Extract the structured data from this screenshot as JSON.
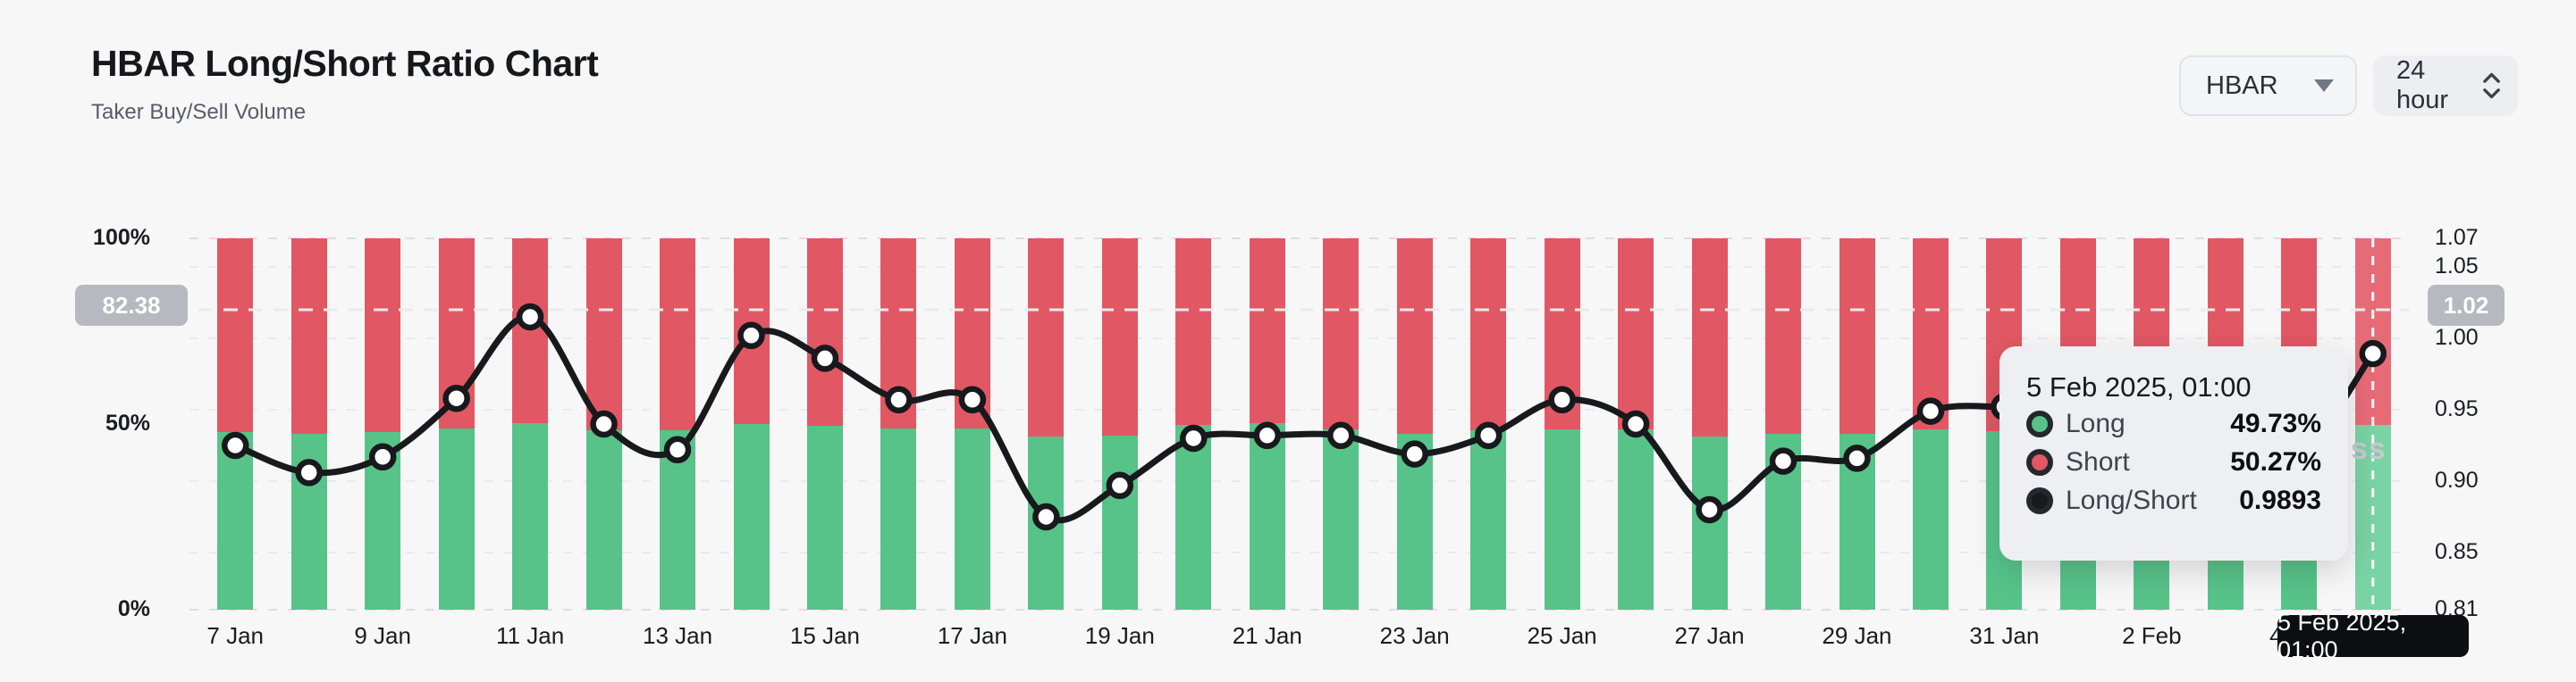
{
  "header": {
    "title": "HBAR Long/Short Ratio Chart",
    "subtitle": "Taker Buy/Sell Volume"
  },
  "controls": {
    "symbol_select": {
      "value": "HBAR"
    },
    "interval_select": {
      "value": "24 hour"
    }
  },
  "axes": {
    "left": {
      "ticks": [
        {
          "label": "100%",
          "value": 100
        },
        {
          "label": "50%",
          "value": 50
        },
        {
          "label": "0%",
          "value": 0
        }
      ],
      "badge": "82.38"
    },
    "right": {
      "ticks": [
        {
          "label": "1.07",
          "value": 1.07
        },
        {
          "label": "1.05",
          "value": 1.05
        },
        {
          "label": "1.00",
          "value": 1.0
        },
        {
          "label": "0.95",
          "value": 0.95
        },
        {
          "label": "0.90",
          "value": 0.9
        },
        {
          "label": "0.85",
          "value": 0.85
        },
        {
          "label": "0.81",
          "value": 0.81
        }
      ],
      "badge": "1.02",
      "range": [
        0.81,
        1.07
      ]
    }
  },
  "reference_line": {
    "right_value": 1.02,
    "left_value": 82.38
  },
  "chart_data": {
    "type": "bar",
    "subtype": "stacked-percent-bars-with-ratio-line",
    "title": "HBAR Long/Short Ratio Chart",
    "categories": [
      "7 Jan",
      "8 Jan",
      "9 Jan",
      "10 Jan",
      "11 Jan",
      "12 Jan",
      "13 Jan",
      "14 Jan",
      "15 Jan",
      "16 Jan",
      "17 Jan",
      "18 Jan",
      "19 Jan",
      "20 Jan",
      "21 Jan",
      "22 Jan",
      "23 Jan",
      "24 Jan",
      "25 Jan",
      "26 Jan",
      "27 Jan",
      "28 Jan",
      "29 Jan",
      "30 Jan",
      "31 Jan",
      "1 Feb",
      "2 Feb",
      "3 Feb",
      "4 Feb",
      "5 Feb"
    ],
    "x_tick_every": 2,
    "series": [
      {
        "name": "Long",
        "type": "bar",
        "color": "#57c389",
        "values": [
          47.9,
          47.4,
          47.8,
          48.8,
          50.2,
          48.3,
          48.3,
          50.0,
          49.4,
          48.7,
          48.9,
          46.6,
          46.8,
          49.8,
          50.2,
          48.5,
          47.4,
          48.2,
          48.6,
          48.6,
          46.6,
          47.4,
          47.4,
          48.6,
          48.0,
          48.5,
          47.5,
          48.8,
          48.0,
          49.73
        ]
      },
      {
        "name": "Short",
        "type": "bar",
        "color": "#e25764",
        "values": [
          52.1,
          52.6,
          52.2,
          51.2,
          49.8,
          51.7,
          51.7,
          50.0,
          50.6,
          51.3,
          51.1,
          53.4,
          53.2,
          50.2,
          49.8,
          51.5,
          52.6,
          51.8,
          51.4,
          51.4,
          53.4,
          52.6,
          52.6,
          51.4,
          52.0,
          51.5,
          52.5,
          51.2,
          52.0,
          50.27
        ]
      },
      {
        "name": "Long/Short",
        "type": "line",
        "color": "#17191c",
        "axis": "right",
        "values": [
          0.925,
          0.906,
          0.917,
          0.958,
          1.015,
          0.94,
          0.922,
          1.002,
          0.986,
          0.957,
          0.957,
          0.875,
          0.897,
          0.93,
          0.932,
          0.932,
          0.919,
          0.932,
          0.957,
          0.94,
          0.88,
          0.914,
          0.916,
          0.949,
          0.952,
          0.95,
          0.947,
          0.938,
          0.92,
          0.9893
        ]
      }
    ],
    "left_axis_range": [
      0,
      100
    ],
    "right_axis_range": [
      0.81,
      1.07
    ],
    "grid": "horizontal-dashed",
    "hovered_index": 29,
    "legend_position": "tooltip-only"
  },
  "tooltip": {
    "title": "5 Feb 2025, 01:00",
    "rows": [
      {
        "label": "Long",
        "value": "49.73%",
        "color": "#57c389"
      },
      {
        "label": "Short",
        "value": "50.27%",
        "color": "#e25764"
      },
      {
        "label": "Long/Short",
        "value": "0.9893",
        "color": "#17191c"
      }
    ]
  },
  "crosshair_badge": "5 Feb 2025, 01:00",
  "watermark": "ss",
  "colors": {
    "long": "#57c389",
    "short": "#e25764",
    "line": "#17191c",
    "background": "#f7f7f8",
    "badge_gray": "#b6b9bf",
    "tooltip_bg": "#edeff2"
  }
}
